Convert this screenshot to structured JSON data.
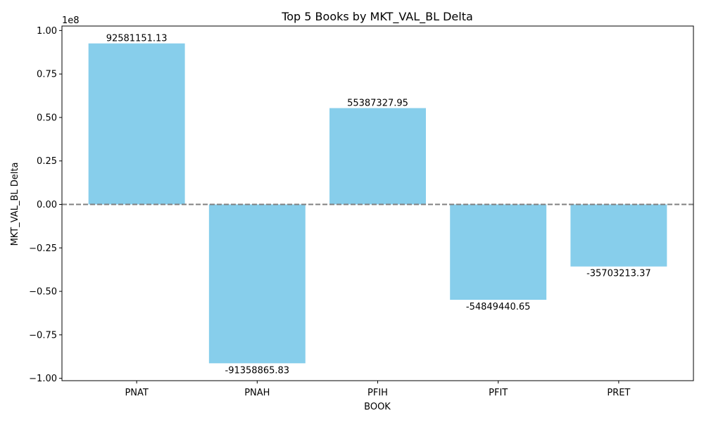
{
  "chart_data": {
    "type": "bar",
    "title": "Top 5 Books by MKT_VAL_BL Delta",
    "xlabel": "BOOK",
    "ylabel": "MKT_VAL_BL Delta",
    "offset_label": "1e8",
    "categories": [
      "PNAT",
      "PNAH",
      "PFIH",
      "PFIT",
      "PRET"
    ],
    "values": [
      92581151.13,
      -91358865.83,
      55387327.95,
      -54849440.65,
      -35703213.37
    ],
    "value_labels": [
      "92581151.13",
      "-91358865.83",
      "55387327.95",
      "-54849440.65",
      "-35703213.37"
    ],
    "yticks": [
      -100000000,
      -75000000,
      -50000000,
      -25000000,
      0,
      25000000,
      50000000,
      75000000,
      100000000
    ],
    "ytick_labels": [
      "−1.00",
      "−0.75",
      "−0.50",
      "−0.25",
      "0.00",
      "0.25",
      "0.50",
      "0.75",
      "1.00"
    ],
    "ylim": [
      -101355866.58,
      102578151.88
    ],
    "bar_color": "#87ceeb",
    "zero_line_color": "#808080",
    "zero_line_style": "dashed",
    "grid": false,
    "legend": null
  }
}
